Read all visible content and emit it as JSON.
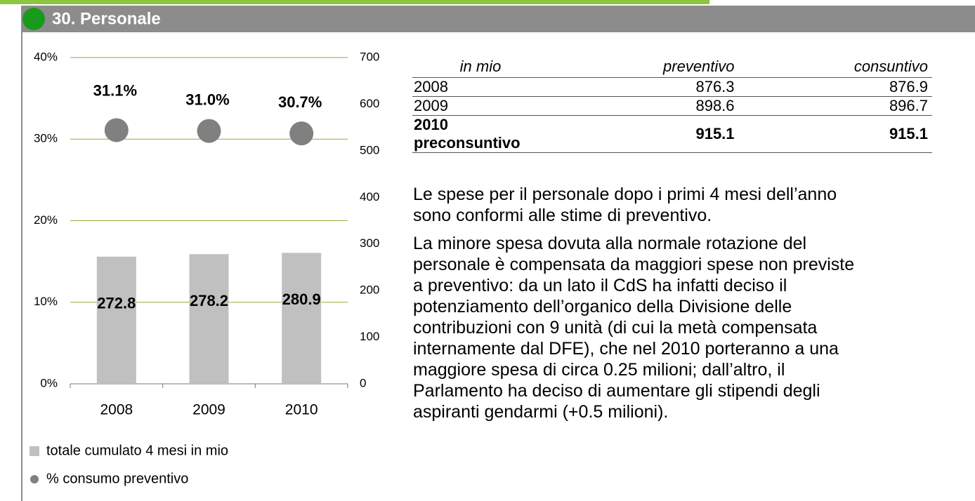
{
  "header": {
    "title": "30. Personale"
  },
  "chart_data": {
    "type": "bar",
    "categories": [
      "2008",
      "2009",
      "2010"
    ],
    "series": [
      {
        "name": "totale cumulato 4 mesi in mio",
        "type": "bar",
        "color": "#c0c0c0",
        "axis": "y2",
        "values": [
          272.8,
          278.2,
          280.9
        ]
      },
      {
        "name": "% consumo preventivo",
        "type": "scatter",
        "color": "#808080",
        "values": [
          31.1,
          31.0,
          30.7
        ],
        "value_labels": [
          "31.1%",
          "31.0%",
          "30.7%"
        ]
      }
    ],
    "ylim": [
      0,
      40
    ],
    "yticks": [
      {
        "value": 0,
        "label": "0%"
      },
      {
        "value": 10,
        "label": "10%"
      },
      {
        "value": 20,
        "label": "20%"
      },
      {
        "value": 30,
        "label": "30%"
      },
      {
        "value": 40,
        "label": "40%"
      }
    ],
    "y2lim": [
      0,
      700
    ],
    "y2ticks": [
      0,
      100,
      200,
      300,
      400,
      500,
      600,
      700
    ],
    "grid": true,
    "grid_color": "#9aab3a",
    "legend": "bottom"
  },
  "table": {
    "header": [
      "in mio",
      "preventivo",
      "consuntivo"
    ],
    "rows": [
      [
        "2008",
        "876.3",
        "876.9"
      ],
      [
        "2009",
        "898.6",
        "896.7"
      ],
      [
        "2010 preconsuntivo",
        "915.1",
        "915.1"
      ]
    ]
  },
  "paragraphs": [
    [
      "Le spese per il personale dopo i primi 4 mesi dell’anno",
      "sono conformi alle stime di preventivo."
    ],
    [
      "La minore spesa dovuta alla normale rotazione del",
      "personale è compensata da maggiori spese non previste",
      "a preventivo: da un lato il CdS ha infatti deciso il",
      "potenziamento dell’organico della Divisione delle",
      "contribuzioni con 9 unità (di cui la metà compensata",
      "internamente dal DFE), che nel 2010 porteranno a una",
      "maggiore spesa di circa 0.25 milioni; dall’altro, il",
      "Parlamento ha deciso di aumentare gli stipendi degli",
      "aspiranti gendarmi (+0.5 milioni)."
    ]
  ]
}
